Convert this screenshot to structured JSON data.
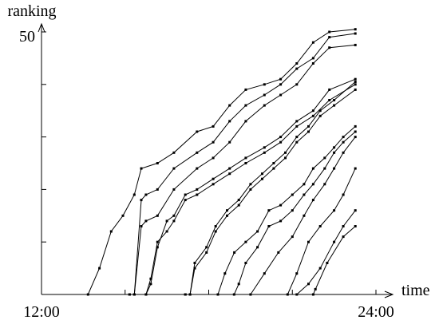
{
  "chart_data": {
    "type": "line",
    "ylabel": "ranking",
    "xlabel": "time",
    "x_tick_labels": [
      {
        "x": 12,
        "label": "12:00"
      },
      {
        "x": 24,
        "label": "24:00"
      }
    ],
    "y_tick_labels": [
      {
        "y": 50,
        "label": "50"
      }
    ],
    "xlim": [
      12,
      24
    ],
    "ylim": [
      0,
      50
    ],
    "x_ticks": [
      12,
      15,
      18,
      21,
      24
    ],
    "y_ticks": [
      10,
      20,
      30,
      40,
      50
    ],
    "grid": false,
    "series": [
      {
        "points": [
          [
            13.67,
            0
          ],
          [
            14.08,
            5
          ],
          [
            14.5,
            12
          ],
          [
            14.92,
            15
          ],
          [
            15.33,
            19
          ],
          [
            15.58,
            24
          ],
          [
            16.16,
            25
          ],
          [
            16.75,
            27
          ],
          [
            17.58,
            31
          ],
          [
            18.16,
            32
          ],
          [
            18.75,
            36
          ],
          [
            19.33,
            39
          ],
          [
            20,
            40
          ],
          [
            20.58,
            41
          ],
          [
            21.16,
            44
          ],
          [
            21.75,
            48
          ],
          [
            22.33,
            50
          ],
          [
            23.26,
            50.5
          ]
        ]
      },
      {
        "points": [
          [
            15.16,
            0
          ],
          [
            15.33,
            0
          ],
          [
            15.58,
            13
          ],
          [
            15.75,
            14
          ],
          [
            16.16,
            15
          ],
          [
            16.75,
            20
          ],
          [
            17.58,
            24
          ],
          [
            18.16,
            26
          ],
          [
            18.75,
            29
          ],
          [
            19.33,
            33
          ],
          [
            20,
            36
          ],
          [
            20.58,
            38
          ],
          [
            21.16,
            40
          ],
          [
            21.75,
            44
          ],
          [
            22.33,
            47
          ],
          [
            23.26,
            47.5
          ]
        ]
      },
      {
        "points": [
          [
            15.16,
            0
          ],
          [
            15.33,
            0
          ],
          [
            15.58,
            18
          ],
          [
            15.75,
            19
          ],
          [
            16.16,
            20
          ],
          [
            16.75,
            24
          ],
          [
            17.58,
            27
          ],
          [
            18.16,
            29
          ],
          [
            18.75,
            33
          ],
          [
            19.33,
            36
          ],
          [
            20,
            38
          ],
          [
            20.58,
            40
          ],
          [
            21.16,
            43
          ],
          [
            21.75,
            45
          ],
          [
            22.33,
            49
          ],
          [
            23.26,
            49.7
          ]
        ]
      },
      {
        "points": [
          [
            15.75,
            0
          ],
          [
            15.92,
            2
          ],
          [
            16.16,
            9
          ],
          [
            16.5,
            14
          ],
          [
            16.75,
            15
          ],
          [
            17.16,
            19
          ],
          [
            17.58,
            20
          ],
          [
            18.16,
            22
          ],
          [
            18.75,
            24
          ],
          [
            19.33,
            26
          ],
          [
            20,
            28
          ],
          [
            20.58,
            30
          ],
          [
            21.16,
            33
          ],
          [
            21.75,
            35
          ],
          [
            22.33,
            39
          ],
          [
            23.26,
            41
          ]
        ]
      },
      {
        "points": [
          [
            15.75,
            0
          ],
          [
            15.92,
            3
          ],
          [
            16.16,
            10
          ],
          [
            16.5,
            12
          ],
          [
            16.75,
            14
          ],
          [
            17.16,
            18
          ],
          [
            17.58,
            19
          ],
          [
            18.16,
            21
          ],
          [
            18.75,
            23
          ],
          [
            19.33,
            25
          ],
          [
            20,
            27
          ],
          [
            20.58,
            29
          ],
          [
            21.16,
            32
          ],
          [
            21.75,
            34
          ],
          [
            22.33,
            37
          ],
          [
            23.26,
            40
          ]
        ]
      },
      {
        "points": [
          [
            17.16,
            0
          ],
          [
            17.33,
            0
          ],
          [
            17.5,
            5
          ],
          [
            17.92,
            8
          ],
          [
            18.25,
            12
          ],
          [
            18.66,
            15
          ],
          [
            19.08,
            17
          ],
          [
            19.5,
            20
          ],
          [
            19.92,
            22
          ],
          [
            20.33,
            24
          ],
          [
            20.75,
            26
          ],
          [
            21.16,
            29
          ],
          [
            21.58,
            31
          ],
          [
            22,
            34
          ],
          [
            22.5,
            36
          ],
          [
            23.26,
            39
          ]
        ]
      },
      {
        "points": [
          [
            17.16,
            0
          ],
          [
            17.33,
            0
          ],
          [
            17.5,
            6
          ],
          [
            17.92,
            9
          ],
          [
            18.25,
            13
          ],
          [
            18.66,
            16
          ],
          [
            19.08,
            18
          ],
          [
            19.5,
            21
          ],
          [
            19.92,
            23
          ],
          [
            20.33,
            25
          ],
          [
            20.75,
            27
          ],
          [
            21.16,
            30
          ],
          [
            21.58,
            32
          ],
          [
            22,
            35
          ],
          [
            22.5,
            37
          ],
          [
            23.26,
            40.5
          ]
        ]
      },
      {
        "points": [
          [
            18.33,
            0
          ],
          [
            18.58,
            4
          ],
          [
            18.92,
            8
          ],
          [
            19.33,
            10
          ],
          [
            19.75,
            12
          ],
          [
            20.16,
            16
          ],
          [
            20.58,
            17
          ],
          [
            21,
            19
          ],
          [
            21.42,
            21
          ],
          [
            21.75,
            24
          ],
          [
            22.16,
            26
          ],
          [
            22.5,
            28
          ],
          [
            22.83,
            30
          ],
          [
            23.26,
            32
          ]
        ]
      },
      {
        "points": [
          [
            18.91,
            0
          ],
          [
            19.08,
            2
          ],
          [
            19.33,
            6
          ],
          [
            19.75,
            9
          ],
          [
            20.16,
            13
          ],
          [
            20.58,
            14
          ],
          [
            21,
            16
          ],
          [
            21.42,
            19
          ],
          [
            21.75,
            21
          ],
          [
            22.16,
            24
          ],
          [
            22.5,
            27
          ],
          [
            22.83,
            29
          ],
          [
            23.26,
            31
          ]
        ]
      },
      {
        "points": [
          [
            19.5,
            0
          ],
          [
            20,
            4
          ],
          [
            20.5,
            8
          ],
          [
            21,
            11
          ],
          [
            21.42,
            15
          ],
          [
            21.75,
            18
          ],
          [
            22.16,
            21
          ],
          [
            22.5,
            24
          ],
          [
            22.83,
            27
          ],
          [
            23.26,
            30
          ]
        ]
      },
      {
        "points": [
          [
            20.83,
            0
          ],
          [
            21.16,
            4
          ],
          [
            21.58,
            10
          ],
          [
            22,
            13
          ],
          [
            22.5,
            16
          ],
          [
            22.83,
            19
          ],
          [
            23.26,
            24
          ]
        ]
      },
      {
        "points": [
          [
            21.75,
            0
          ],
          [
            21.83,
            1
          ],
          [
            22.25,
            6
          ],
          [
            22.83,
            11
          ],
          [
            23.26,
            13
          ]
        ]
      },
      {
        "points": [
          [
            21.16,
            0
          ],
          [
            21.58,
            2
          ],
          [
            22,
            5
          ],
          [
            22.5,
            10
          ],
          [
            22.83,
            13
          ],
          [
            23.26,
            16
          ]
        ]
      }
    ]
  }
}
